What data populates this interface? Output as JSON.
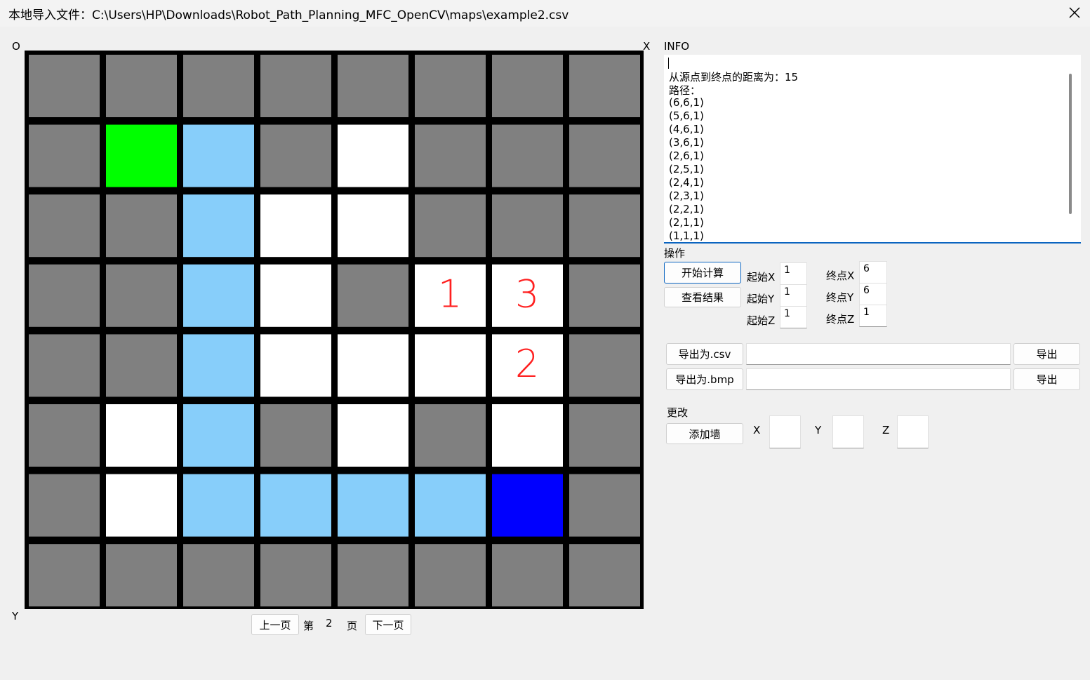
{
  "window": {
    "title": "本地导入文件：C:\\Users\\HP\\Downloads\\Robot_Path_Planning_MFC_OpenCV\\maps\\example2.csv"
  },
  "map": {
    "origin": "O",
    "x_axis": "X",
    "y_axis": "Y",
    "cell_labels": [
      "1",
      "3",
      "2"
    ]
  },
  "pager": {
    "prev": "上一页",
    "page_prefix": "第",
    "page": "2",
    "page_suffix": "页",
    "next": "下一页"
  },
  "info": {
    "label": "INFO",
    "lines": [
      "从源点到终点的距离为：15",
      "路径：",
      "(6,6,1)",
      "(5,6,1)",
      "(4,6,1)",
      "(3,6,1)",
      "(2,6,1)",
      "(2,5,1)",
      "(2,4,1)",
      "(2,3,1)",
      "(2,2,1)",
      "(2,1,1)",
      "(1,1,1)"
    ]
  },
  "operations": {
    "label": "操作",
    "start_button": "开始计算",
    "view_button": "查看结果",
    "start_fields": [
      {
        "label": "起始X",
        "value": "1"
      },
      {
        "label": "起始Y",
        "value": "1"
      },
      {
        "label": "起始Z",
        "value": "1"
      }
    ],
    "end_fields": [
      {
        "label": "终点X",
        "value": "6"
      },
      {
        "label": "终点Y",
        "value": "6"
      },
      {
        "label": "终点Z",
        "value": "1"
      }
    ]
  },
  "export": {
    "csv_button": "导出为.csv",
    "bmp_button": "导出为.bmp",
    "csv_export": "导出",
    "bmp_export": "导出"
  },
  "modify": {
    "label": "更改",
    "add_wall": "添加墙",
    "fields": [
      "X",
      "Y",
      "Z"
    ]
  }
}
